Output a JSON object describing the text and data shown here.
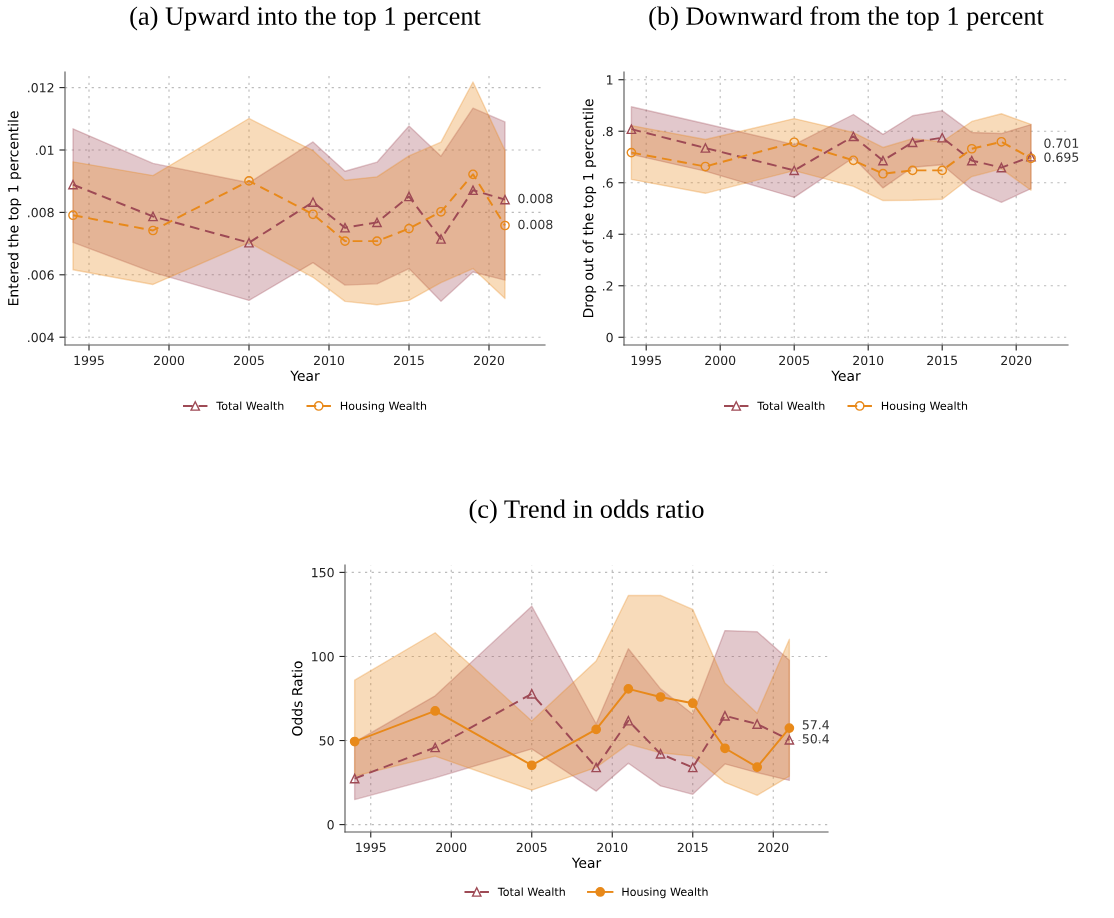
{
  "chart_data": [
    {
      "type": "line",
      "title": "(a) Upward into the top 1 percent",
      "xlabel": "Year",
      "ylabel": "Entered the top 1 percentile",
      "x": [
        1994,
        1999,
        2005,
        2009,
        2011,
        2013,
        2015,
        2017,
        2019,
        2021
      ],
      "series": [
        {
          "name": "Total Wealth",
          "color": "#9e4a55",
          "line_style": "dashed",
          "marker": "triangle",
          "values": [
            0.00889,
            0.00787,
            0.00703,
            0.00833,
            0.00751,
            0.00768,
            0.00851,
            0.00715,
            0.00871,
            0.00841
          ],
          "lower": [
            0.00704,
            0.00608,
            0.00518,
            0.00639,
            0.00567,
            0.00571,
            0.0062,
            0.00515,
            0.00609,
            0.00583
          ],
          "upper": [
            0.01068,
            0.00957,
            0.00895,
            0.01026,
            0.00932,
            0.00961,
            0.01077,
            0.0098,
            0.01134,
            0.0109
          ],
          "value_labels": [
            null,
            null,
            null,
            null,
            null,
            null,
            null,
            null,
            null,
            "0.008"
          ]
        },
        {
          "name": "Housing Wealth",
          "color": "#e8891a",
          "line_style": "dashed",
          "marker": "circle",
          "values": [
            0.00791,
            0.00742,
            0.00901,
            0.00794,
            0.00708,
            0.00708,
            0.00748,
            0.00802,
            0.00922,
            0.00758
          ],
          "lower": [
            0.00616,
            0.00569,
            0.00703,
            0.00592,
            0.00515,
            0.00504,
            0.00518,
            0.00575,
            0.0062,
            0.00524
          ],
          "upper": [
            0.00962,
            0.00918,
            0.01101,
            0.00998,
            0.00903,
            0.00914,
            0.00981,
            0.01025,
            0.01218,
            0.00998
          ],
          "value_labels": [
            null,
            null,
            null,
            null,
            null,
            null,
            null,
            null,
            null,
            "0.008"
          ]
        }
      ],
      "xlim": [
        1993.5,
        2023.5
      ],
      "xticks": [
        1995,
        2000,
        2005,
        2010,
        2015,
        2020
      ],
      "ylim": [
        0.00375,
        0.0125
      ],
      "yticks": [
        {
          "value": 0.004,
          "label": ".004"
        },
        {
          "value": 0.006,
          "label": ".006"
        },
        {
          "value": 0.008,
          "label": ".008"
        },
        {
          "value": 0.01,
          "label": ".01"
        },
        {
          "value": 0.012,
          "label": ".012"
        }
      ],
      "grid": true,
      "legend": "bottom"
    },
    {
      "type": "line",
      "title": "(b) Downward from the top 1 percent",
      "xlabel": "Year",
      "ylabel": "Drop out of the top 1 percentile",
      "x": [
        1994,
        1999,
        2005,
        2009,
        2011,
        2013,
        2015,
        2017,
        2019,
        2021
      ],
      "series": [
        {
          "name": "Total Wealth",
          "color": "#9e4a55",
          "line_style": "dashed",
          "marker": "triangle",
          "values": [
            0.808,
            0.735,
            0.648,
            0.78,
            0.686,
            0.757,
            0.775,
            0.686,
            0.659,
            0.701
          ],
          "lower": [
            0.71,
            0.645,
            0.543,
            0.697,
            0.58,
            0.66,
            0.67,
            0.573,
            0.524,
            0.577
          ],
          "upper": [
            0.895,
            0.829,
            0.748,
            0.865,
            0.788,
            0.86,
            0.88,
            0.795,
            0.791,
            0.826
          ],
          "value_labels": [
            null,
            null,
            null,
            null,
            null,
            null,
            null,
            null,
            null,
            "0.701"
          ]
        },
        {
          "name": "Housing Wealth",
          "color": "#e8891a",
          "line_style": "dashed",
          "marker": "circle",
          "values": [
            0.717,
            0.663,
            0.757,
            0.687,
            0.635,
            0.648,
            0.648,
            0.732,
            0.759,
            0.695
          ],
          "lower": [
            0.613,
            0.559,
            0.647,
            0.586,
            0.531,
            0.532,
            0.536,
            0.624,
            0.654,
            0.571
          ],
          "upper": [
            0.822,
            0.768,
            0.849,
            0.795,
            0.737,
            0.771,
            0.759,
            0.838,
            0.868,
            0.827
          ],
          "value_labels": [
            null,
            null,
            null,
            null,
            null,
            null,
            null,
            null,
            null,
            "0.695"
          ]
        }
      ],
      "xlim": [
        1993.5,
        2023.5
      ],
      "xticks": [
        1995,
        2000,
        2005,
        2010,
        2015,
        2020
      ],
      "ylim": [
        -0.03,
        1.03
      ],
      "yticks": [
        0,
        {
          "value": 0.2,
          "label": ".2"
        },
        {
          "value": 0.4,
          "label": ".4"
        },
        {
          "value": 0.6,
          "label": ".6"
        },
        {
          "value": 0.8,
          "label": ".8"
        },
        1
      ],
      "grid": true,
      "legend": "bottom"
    },
    {
      "type": "line",
      "title": "(c) Trend in odds ratio",
      "xlabel": "Year",
      "ylabel": "Odds Ratio",
      "x": [
        1994,
        1999,
        2005,
        2009,
        2011,
        2013,
        2015,
        2017,
        2019,
        2021
      ],
      "series": [
        {
          "name": "Total Wealth",
          "color": "#9e4a55",
          "line_style": "dashed",
          "marker": "triangle",
          "values": [
            27.4,
            45.9,
            77.8,
            34.0,
            61.8,
            42.1,
            34.0,
            64.7,
            59.8,
            50.4
          ],
          "lower": [
            14.9,
            27.8,
            45,
            19.9,
            36.5,
            23,
            18,
            36.1,
            30.9,
            26.3
          ],
          "upper": [
            49,
            76.6,
            129.9,
            60,
            104.6,
            80.7,
            65.6,
            115.4,
            114.7,
            97.7
          ],
          "value_labels": [
            null,
            null,
            null,
            null,
            null,
            null,
            null,
            null,
            null,
            "50.4"
          ]
        },
        {
          "name": "Housing Wealth",
          "color": "#e8891a",
          "line_style": "solid",
          "marker": "circle",
          "values": [
            49.4,
            67.6,
            35.3,
            56.6,
            80.7,
            75.9,
            72.2,
            45.4,
            34.2,
            57.4
          ],
          "lower": [
            28.8,
            40.7,
            20.5,
            34,
            47.9,
            42.7,
            40.7,
            25.1,
            17.4,
            28.8
          ],
          "upper": [
            85.9,
            114.1,
            61.6,
            97.3,
            136.3,
            136.3,
            128,
            84.2,
            66.2,
            110.2
          ],
          "value_labels": [
            null,
            null,
            null,
            null,
            null,
            null,
            null,
            null,
            null,
            "57.4"
          ]
        }
      ],
      "xlim": [
        1993.4,
        2023.4
      ],
      "xticks": [
        1995,
        2000,
        2005,
        2010,
        2015,
        2020
      ],
      "ylim": [
        -4.4,
        154.4
      ],
      "yticks": [
        0,
        50,
        100,
        150
      ],
      "grid": true,
      "legend": "bottom"
    }
  ]
}
